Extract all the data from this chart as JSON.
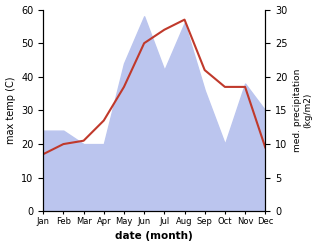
{
  "months": [
    "Jan",
    "Feb",
    "Mar",
    "Apr",
    "May",
    "Jun",
    "Jul",
    "Aug",
    "Sep",
    "Oct",
    "Nov",
    "Dec"
  ],
  "temperature": [
    17,
    20,
    21,
    27,
    37,
    50,
    54,
    57,
    42,
    37,
    37,
    19
  ],
  "precipitation_right": [
    12,
    12,
    10,
    10,
    22,
    29,
    21,
    28,
    18,
    10,
    19,
    15
  ],
  "temp_color": "#c0392b",
  "precip_fill_color": "#bbc5ee",
  "temp_ylim": [
    0,
    60
  ],
  "precip_ylim": [
    0,
    30
  ],
  "temp_yticks": [
    0,
    10,
    20,
    30,
    40,
    50,
    60
  ],
  "precip_yticks": [
    0,
    5,
    10,
    15,
    20,
    25,
    30
  ],
  "xlabel": "date (month)",
  "ylabel_left": "max temp (C)",
  "ylabel_right": "med. precipitation\n(kg/m2)",
  "bg_color": "#ffffff"
}
